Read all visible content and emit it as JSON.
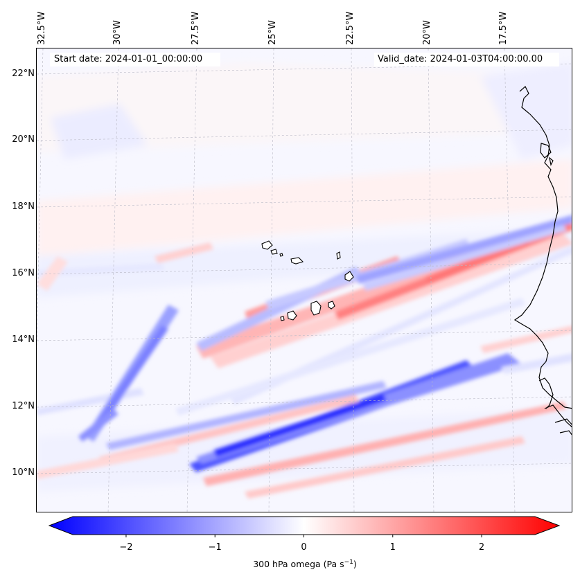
{
  "header": {
    "start_label": "Start date: 2024-01-01_00:00:00",
    "valid_label": "Valid_date: 2024-01-03T04:00:00.00"
  },
  "longitude_labels": [
    "32.5°W",
    "30°W",
    "27.5°W",
    "25°W",
    "22.5°W",
    "20°W",
    "17.5°W"
  ],
  "latitude_labels": [
    "22°N",
    "20°N",
    "18°N",
    "16°N",
    "14°N",
    "12°N",
    "10°N"
  ],
  "colorbar": {
    "min": -2.6,
    "max": 2.6,
    "tick_values": [
      -2,
      -1,
      0,
      1,
      2
    ],
    "tick_labels": [
      "−2",
      "−1",
      "0",
      "1",
      "2"
    ],
    "title": "300 hPa omega (Pa s",
    "title_exponent": "−1",
    "title_suffix": ")",
    "colormap": "bwr"
  },
  "map": {
    "variable": "300 hPa omega",
    "units": "Pa s−1",
    "lon_range": [
      -33,
      -16
    ],
    "lat_range": [
      9,
      23
    ],
    "colors": {
      "negative": "#0000ff",
      "neutral": "#ffffff",
      "positive": "#ff0000",
      "coastline": "#000000"
    }
  }
}
